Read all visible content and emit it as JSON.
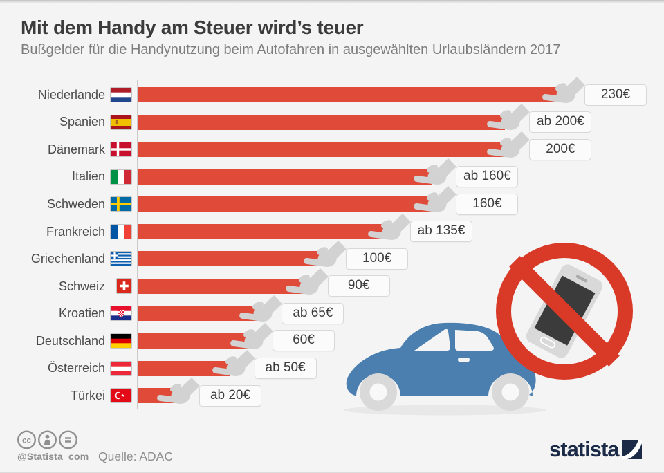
{
  "header": {
    "title": "Mit dem Handy am Steuer wird’s teuer",
    "subtitle": "Bußgelder für die Handynutzung beim Autofahren in ausgewählten Urlaubsländern 2017"
  },
  "chart_data": {
    "type": "bar",
    "orientation": "horizontal",
    "title": "Mit dem Handy am Steuer wird’s teuer",
    "subtitle": "Bußgelder für die Handynutzung beim Autofahren in ausgewählten Urlaubsländern 2017",
    "unit": "EUR",
    "xlim": [
      0,
      240
    ],
    "grid": false,
    "legend": false,
    "rows": [
      {
        "country": "Niederlande",
        "flag": "nl",
        "value": 230,
        "label": "230€"
      },
      {
        "country": "Spanien",
        "flag": "es",
        "value": 200,
        "label": "ab 200€"
      },
      {
        "country": "Dänemark",
        "flag": "dk",
        "value": 200,
        "label": "200€"
      },
      {
        "country": "Italien",
        "flag": "it",
        "value": 160,
        "label": "ab 160€"
      },
      {
        "country": "Schweden",
        "flag": "se",
        "value": 160,
        "label": "160€"
      },
      {
        "country": "Frankreich",
        "flag": "fr",
        "value": 135,
        "label": "ab 135€"
      },
      {
        "country": "Griechenland",
        "flag": "gr",
        "value": 100,
        "label": "100€"
      },
      {
        "country": "Schweiz",
        "flag": "ch",
        "value": 90,
        "label": "90€"
      },
      {
        "country": "Kroatien",
        "flag": "hr",
        "value": 65,
        "label": "ab 65€"
      },
      {
        "country": "Deutschland",
        "flag": "de",
        "value": 60,
        "label": "60€"
      },
      {
        "country": "Österreich",
        "flag": "at",
        "value": 50,
        "label": "ab 50€"
      },
      {
        "country": "Türkei",
        "flag": "tr",
        "value": 20,
        "label": "ab 20€"
      }
    ]
  },
  "footer": {
    "handle": "@Statista_com",
    "source": "Quelle: ADAC",
    "brand": "statista"
  },
  "icons": {
    "license": [
      "cc-icon",
      "attribution-person-icon",
      "equals-icon"
    ],
    "bar_pointer": "hand-cursor-icon",
    "illustrations": [
      "car-icon",
      "no-phone-sign-icon",
      "smartphone-icon"
    ],
    "flags": "country-flag-icon"
  },
  "colors": {
    "background": "#f4f4f4",
    "bar": "#df4b38",
    "sign": "#d93a28",
    "car": "#4a7fb0",
    "navy": "#1b2a47",
    "text-dark": "#3c3c3c",
    "text-gray": "#7d7d7d"
  }
}
